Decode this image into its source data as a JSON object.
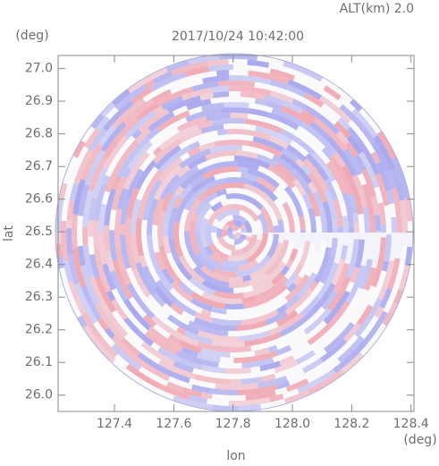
{
  "chart_data": {
    "type": "ppi",
    "altitude_label": "ALT(km) 2.0",
    "title": "2017/10/24 10:42:00",
    "y_unit": "(deg)",
    "x_unit": "(deg)",
    "ylabel": "lat",
    "xlabel": "lon",
    "xlim": [
      127.21,
      128.41
    ],
    "ylim": [
      25.95,
      27.04
    ],
    "xticks": [
      127.4,
      127.6,
      127.8,
      {
        "value": 128,
        "label": "128.0"
      },
      128.2,
      128.4
    ],
    "yticks": [
      {
        "value": 26,
        "label": "26.0"
      },
      26.1,
      26.2,
      26.3,
      26.4,
      26.5,
      26.6,
      26.7,
      26.8,
      26.9,
      {
        "value": 27,
        "label": "27.0"
      }
    ]
  }
}
